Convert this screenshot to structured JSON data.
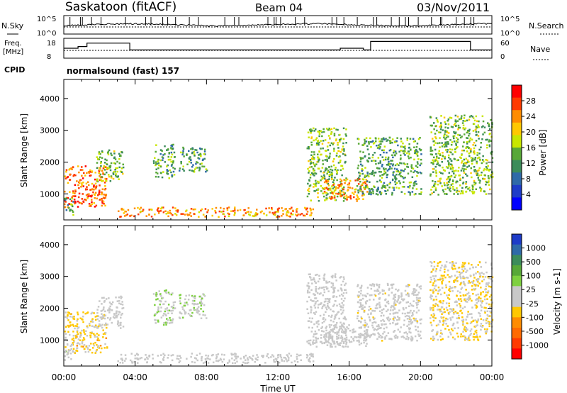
{
  "header": {
    "station": "Saskatoon (fitACF)",
    "beam": "Beam 04",
    "date": "03/Nov/2011"
  },
  "noise_panel": {
    "left_label": "N.Sky",
    "left_ticks": [
      "10^5",
      "10^0"
    ],
    "right_ticks": [
      "10^5",
      "10^0"
    ],
    "right_label": "N.Search"
  },
  "freq_panel": {
    "left_label_line1": "Freq.",
    "left_label_line2": "[MHz]",
    "left_ticks": [
      "18",
      "8"
    ],
    "right_ticks": [
      "60",
      "0"
    ],
    "right_label": "Nave"
  },
  "cpid": {
    "label": "CPID",
    "value": "normalsound (fast) 157"
  },
  "power_panel": {
    "ylabel": "Slant Range [km]",
    "yticks": [
      "4000",
      "3000",
      "2000",
      "1000"
    ],
    "colorbar_label": "Power [dB]",
    "colorbar_ticks": [
      "28",
      "24",
      "20",
      "16",
      "12",
      "8",
      "4"
    ],
    "colorbar_colors": [
      "#ff0000",
      "#ff3a00",
      "#ff8c00",
      "#ffc800",
      "#c8e600",
      "#58a838",
      "#3c8c5a",
      "#2f6aa8",
      "#1e3cc8",
      "#0000ff"
    ]
  },
  "velocity_panel": {
    "ylabel": "Slant Range [km]",
    "yticks": [
      "4000",
      "3000",
      "2000",
      "1000"
    ],
    "colorbar_label": "Velocity [m s-1]",
    "colorbar_ticks": [
      "1000",
      "500",
      "100",
      "25",
      "-25",
      "-100",
      "-500",
      "-1000"
    ],
    "colorbar_colors": [
      "#1e3cc8",
      "#2f6aa8",
      "#3c8c5a",
      "#58a838",
      "#7ed040",
      "#c8c8c8",
      "#c8c8c8",
      "#ffc800",
      "#ff8c00",
      "#ff6a00",
      "#ff3a00",
      "#ff0000"
    ]
  },
  "x_axis": {
    "ticks": [
      "00:00",
      "04:00",
      "08:00",
      "12:00",
      "16:00",
      "20:00",
      "00:00"
    ],
    "label": "Time UT"
  },
  "chart_data": {
    "type": "heatmap",
    "panels": [
      "power",
      "velocity"
    ],
    "x_range_hours": [
      0,
      24
    ],
    "y_range_km": [
      180,
      4600
    ],
    "power_clim_db": [
      0,
      30
    ],
    "velocity_clim": [
      -1000,
      1000
    ],
    "frequency_mhz": {
      "times": [
        0,
        0.8,
        1.3,
        3.4,
        3.7,
        14.0,
        15.5,
        16.8,
        17.2,
        20.0,
        22.0,
        22.8,
        24
      ],
      "values": [
        13,
        14,
        16,
        16,
        12,
        12,
        13,
        12,
        17,
        17,
        17,
        12,
        15
      ]
    },
    "echo_regions": [
      {
        "t": [
          0,
          2.4
        ],
        "r": [
          600,
          1900
        ],
        "power": 24,
        "velocity": -200
      },
      {
        "t": [
          1.8,
          3.3
        ],
        "r": [
          1400,
          2400
        ],
        "power": 14,
        "velocity": 0
      },
      {
        "t": [
          0,
          0.5
        ],
        "r": [
          300,
          900
        ],
        "power": 12,
        "velocity": 50
      },
      {
        "t": [
          3.0,
          14.0
        ],
        "r": [
          300,
          600
        ],
        "power": 22,
        "velocity": 0
      },
      {
        "t": [
          5.0,
          6.2
        ],
        "r": [
          1500,
          2600
        ],
        "power": 12,
        "velocity": 150
      },
      {
        "t": [
          6.4,
          8.0
        ],
        "r": [
          1700,
          2500
        ],
        "power": 12,
        "velocity": 150
      },
      {
        "t": [
          13.6,
          15.8
        ],
        "r": [
          800,
          3100
        ],
        "power": 14,
        "velocity": -10
      },
      {
        "t": [
          14.5,
          17.0
        ],
        "r": [
          800,
          1500
        ],
        "power": 22,
        "velocity": -10
      },
      {
        "t": [
          16.4,
          20.0
        ],
        "r": [
          1000,
          2800
        ],
        "power": 12,
        "velocity": -30
      },
      {
        "t": [
          20.5,
          24.0
        ],
        "r": [
          1000,
          3500
        ],
        "power": 14,
        "velocity": -150
      }
    ]
  }
}
